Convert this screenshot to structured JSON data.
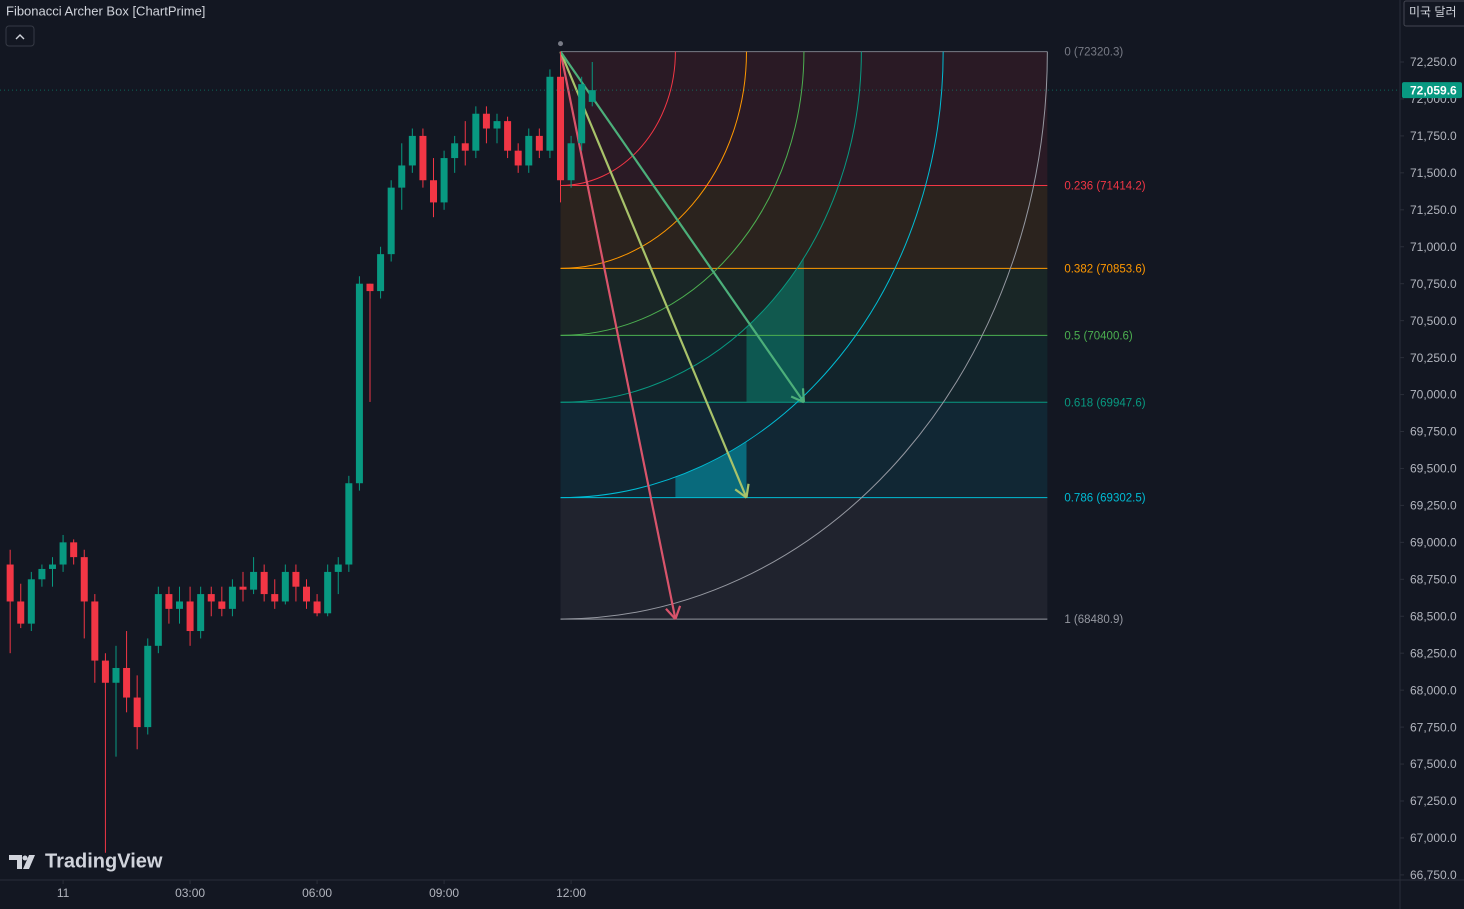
{
  "chart_data": {
    "type": "candlestick",
    "title": "Fibonacci Archer Box [ChartPrime]",
    "up_color": "#089981",
    "down_color": "#f23645",
    "x": [
      -1.25,
      -1,
      -0.75,
      -0.5,
      -0.25,
      0,
      0.25,
      0.5,
      0.75,
      1,
      1.25,
      1.5,
      1.75,
      2,
      2.25,
      2.5,
      2.75,
      3,
      3.25,
      3.5,
      3.75,
      4,
      4.25,
      4.5,
      4.75,
      5,
      5.25,
      5.5,
      5.75,
      6,
      6.25,
      6.5,
      6.75,
      7,
      7.25,
      7.5,
      7.75,
      8,
      8.25,
      8.5,
      8.75,
      9,
      9.25,
      9.5,
      9.75,
      10,
      10.25,
      10.5,
      10.75,
      11,
      11.25,
      11.5,
      11.75,
      12,
      12.25,
      12.5
    ],
    "open": [
      68850,
      68600,
      68450,
      68750,
      68820,
      68850,
      69000,
      68900,
      68600,
      68200,
      68050,
      68150,
      67950,
      67750,
      68300,
      68650,
      68550,
      68600,
      68400,
      68650,
      68600,
      68550,
      68700,
      68680,
      68800,
      68650,
      68600,
      68800,
      68700,
      68600,
      68520,
      68800,
      68850,
      69400,
      70750,
      70700,
      70950,
      71400,
      71550,
      71750,
      71450,
      71300,
      71600,
      71700,
      71650,
      71900,
      71800,
      71850,
      71650,
      71550,
      71750,
      71650,
      72150,
      71450,
      71700,
      71980
    ],
    "high": [
      68950,
      68720,
      68800,
      68850,
      68900,
      69050,
      69020,
      68950,
      68650,
      68250,
      68300,
      68400,
      68100,
      68350,
      68700,
      68700,
      68700,
      68700,
      68700,
      68700,
      68700,
      68750,
      68800,
      68900,
      68850,
      68750,
      68850,
      68850,
      68750,
      68650,
      68850,
      68900,
      69450,
      70800,
      70750,
      71000,
      71450,
      71700,
      71800,
      71800,
      71600,
      71650,
      71750,
      71850,
      71950,
      71950,
      71900,
      71880,
      71700,
      71800,
      71800,
      72200,
      72320,
      71750,
      72150,
      72250
    ],
    "low": [
      68250,
      68420,
      68400,
      68700,
      68700,
      68800,
      68850,
      68350,
      68050,
      66900,
      67550,
      67850,
      67600,
      67700,
      68250,
      68450,
      68450,
      68300,
      68350,
      68500,
      68500,
      68500,
      68600,
      68650,
      68600,
      68550,
      68580,
      68600,
      68550,
      68500,
      68500,
      68650,
      68800,
      69350,
      69950,
      70650,
      70900,
      71250,
      71500,
      71400,
      71200,
      71250,
      71500,
      71550,
      71600,
      71700,
      71700,
      71600,
      71500,
      71500,
      71600,
      71600,
      71300,
      71400,
      71650,
      71950
    ],
    "close": [
      68600,
      68450,
      68750,
      68820,
      68850,
      69000,
      68900,
      68600,
      68200,
      68050,
      68150,
      67950,
      67750,
      68300,
      68650,
      68550,
      68600,
      68400,
      68650,
      68600,
      68550,
      68700,
      68680,
      68800,
      68650,
      68600,
      68800,
      68700,
      68600,
      68520,
      68800,
      68850,
      69400,
      70750,
      70700,
      70950,
      71400,
      71550,
      71750,
      71450,
      71300,
      71600,
      71700,
      71650,
      71900,
      71800,
      71850,
      71650,
      71550,
      71750,
      71650,
      72150,
      71450,
      71700,
      72100,
      72059.6
    ],
    "xlim": [
      -1.49,
      31.58
    ],
    "xticks": [
      {
        "value": 0,
        "label": "11"
      },
      {
        "value": 3,
        "label": "03:00"
      },
      {
        "value": 6,
        "label": "06:00"
      },
      {
        "value": 9,
        "label": "09:00"
      },
      {
        "value": 12,
        "label": "12:00"
      }
    ],
    "ylim": [
      66715.5,
      72669.5
    ],
    "yticks": [
      {
        "value": 66750,
        "label": "66,750.0"
      },
      {
        "value": 67000,
        "label": "67,000.0"
      },
      {
        "value": 67250,
        "label": "67,250.0"
      },
      {
        "value": 67500,
        "label": "67,500.0"
      },
      {
        "value": 67750,
        "label": "67,750.0"
      },
      {
        "value": 68000,
        "label": "68,000.0"
      },
      {
        "value": 68250,
        "label": "68,250.0"
      },
      {
        "value": 68500,
        "label": "68,500.0"
      },
      {
        "value": 68750,
        "label": "68,750.0"
      },
      {
        "value": 69000,
        "label": "69,000.0"
      },
      {
        "value": 69250,
        "label": "69,250.0"
      },
      {
        "value": 69500,
        "label": "69,500.0"
      },
      {
        "value": 69750,
        "label": "69,750.0"
      },
      {
        "value": 70000,
        "label": "70,000.0"
      },
      {
        "value": 70250,
        "label": "70,250.0"
      },
      {
        "value": 70500,
        "label": "70,500.0"
      },
      {
        "value": 70750,
        "label": "70,750.0"
      },
      {
        "value": 71000,
        "label": "71,000.0"
      },
      {
        "value": 71250,
        "label": "71,250.0"
      },
      {
        "value": 71500,
        "label": "71,500.0"
      },
      {
        "value": 71750,
        "label": "71,750.0"
      },
      {
        "value": 72000,
        "label": "72,000.0"
      },
      {
        "value": 72250,
        "label": "72,250.0"
      }
    ],
    "current_price": {
      "value": 72059.6,
      "label": "72,059.6",
      "color": "#089981"
    },
    "fib_box": {
      "x": [
        11.75,
        23.25
      ],
      "levels": [
        {
          "ratio": 0,
          "price": 72320.3,
          "label": "0 (72320.3)",
          "color": "#787b86"
        },
        {
          "ratio": 0.236,
          "price": 71414.2,
          "label": "0.236 (71414.2)",
          "color": "#f23645"
        },
        {
          "ratio": 0.382,
          "price": 70853.6,
          "label": "0.382 (70853.6)",
          "color": "#ff9800"
        },
        {
          "ratio": 0.5,
          "price": 70400.6,
          "label": "0.5 (70400.6)",
          "color": "#4caf50"
        },
        {
          "ratio": 0.618,
          "price": 69947.6,
          "label": "0.618 (69947.6)",
          "color": "#089981"
        },
        {
          "ratio": 0.786,
          "price": 69302.5,
          "label": "0.786 (69302.5)",
          "color": "#00bcd4"
        },
        {
          "ratio": 1,
          "price": 68480.9,
          "label": "1 (68480.9)",
          "color": "#9598a1"
        }
      ]
    }
  },
  "ui": {
    "currency": "미국 달러",
    "logo": "TradingView"
  }
}
